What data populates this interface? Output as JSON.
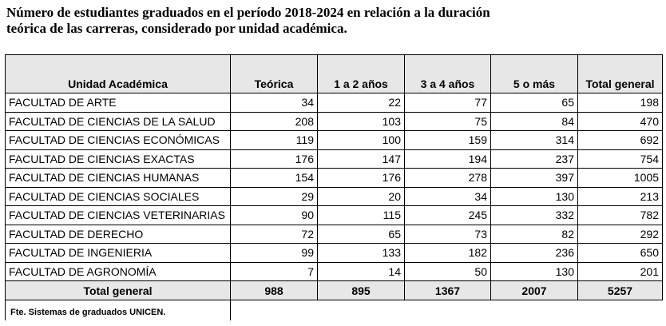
{
  "title_lines": [
    "Número de estudiantes graduados en el período 2018-2024 en relación a la duración",
    "teórica de las carreras, considerado por unidad académica."
  ],
  "table": {
    "header": [
      "Unidad Académica",
      "Teórica",
      "1 a 2 años",
      "3 a 4 años",
      "5 o más",
      "Total general"
    ],
    "rows": [
      [
        "FACULTAD DE ARTE",
        34,
        22,
        77,
        65,
        198
      ],
      [
        "FACULTAD DE CIENCIAS DE LA SALUD",
        208,
        103,
        75,
        84,
        470
      ],
      [
        "FACULTAD DE CIENCIAS ECONÓMICAS",
        119,
        100,
        159,
        314,
        692
      ],
      [
        "FACULTAD DE CIENCIAS EXACTAS",
        176,
        147,
        194,
        237,
        754
      ],
      [
        "FACULTAD DE CIENCIAS HUMANAS",
        154,
        176,
        278,
        397,
        1005
      ],
      [
        "FACULTAD DE CIENCIAS SOCIALES",
        29,
        20,
        34,
        130,
        213
      ],
      [
        "FACULTAD DE CIENCIAS VETERINARIAS",
        90,
        115,
        245,
        332,
        782
      ],
      [
        "FACULTAD DE DERECHO",
        72,
        65,
        73,
        82,
        292
      ],
      [
        "FACULTAD DE INGENIERIA",
        99,
        133,
        182,
        236,
        650
      ],
      [
        "FACULTAD DE AGRONOMÍA",
        7,
        14,
        50,
        130,
        201
      ]
    ],
    "total": [
      "Total general",
      988,
      895,
      1367,
      2007,
      5257
    ]
  },
  "source": "Fte.  Sistemas de graduados UNICEN."
}
